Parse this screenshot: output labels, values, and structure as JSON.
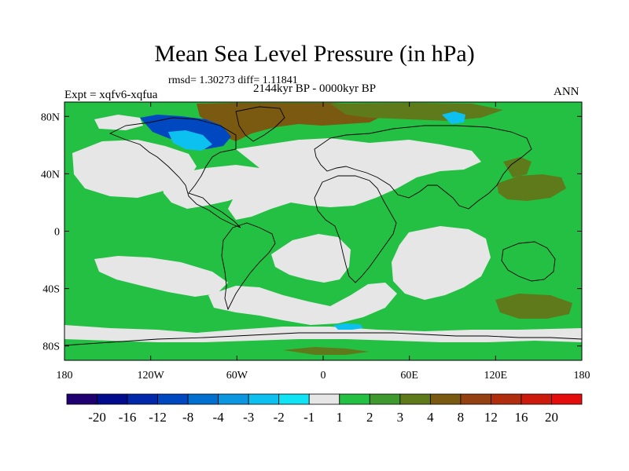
{
  "chart_data": {
    "type": "heatmap",
    "title": "Mean Sea Level Pressure (in hPa)",
    "subtitle_stats": "rmsd= 1.30273 diff= 1.11841",
    "subtitle_period": "2144kyr BP - 0000kyr BP",
    "left_label": "Expt = xqfv6-xqfua",
    "right_label": "ANN",
    "x_ticks": [
      "180",
      "120W",
      "60W",
      "0",
      "60E",
      "120E",
      "180"
    ],
    "x_tick_values": [
      -180,
      -120,
      -60,
      0,
      60,
      120,
      180
    ],
    "y_ticks": [
      "80N",
      "40N",
      "0",
      "40S",
      "80S"
    ],
    "y_tick_values": [
      80,
      40,
      0,
      -40,
      -80
    ],
    "xlim": [
      -180,
      180
    ],
    "ylim": [
      -90,
      90
    ],
    "colorbar": {
      "levels": [
        "-20",
        "-16",
        "-12",
        "-8",
        "-4",
        "-3",
        "-2",
        "-1",
        "1",
        "2",
        "3",
        "4",
        "8",
        "12",
        "16",
        "20"
      ],
      "colors": [
        "#200070",
        "#000c8c",
        "#0028a8",
        "#0048c0",
        "#0070d0",
        "#0c96e0",
        "#0cc0f0",
        "#10e4f4",
        "#e6e6e6",
        "#24c044",
        "#3e9a2e",
        "#5e7a1a",
        "#7a5a10",
        "#944010",
        "#b02e0e",
        "#cc1a0c",
        "#e40c0c"
      ]
    },
    "regions": [
      {
        "name": "ocean-background",
        "bin": "1 to 2"
      },
      {
        "name": "north-pacific",
        "bin": "-1 to 1"
      },
      {
        "name": "north-atlantic",
        "bin": "-1 to 1"
      },
      {
        "name": "north-america-arctic",
        "bin": "-12 to -2"
      },
      {
        "name": "greenland",
        "bin": "3 to 4"
      },
      {
        "name": "south-atlantic",
        "bin": "-1 to 1"
      },
      {
        "name": "indian-ocean",
        "bin": "-1 to 1"
      },
      {
        "name": "southeast-pacific",
        "bin": "-1 to 1"
      },
      {
        "name": "west-pacific",
        "bin": "3 to 4"
      },
      {
        "name": "southwest-pacific",
        "bin": "3 to 4"
      },
      {
        "name": "antarctica",
        "bin": "-3 to -1"
      }
    ]
  }
}
